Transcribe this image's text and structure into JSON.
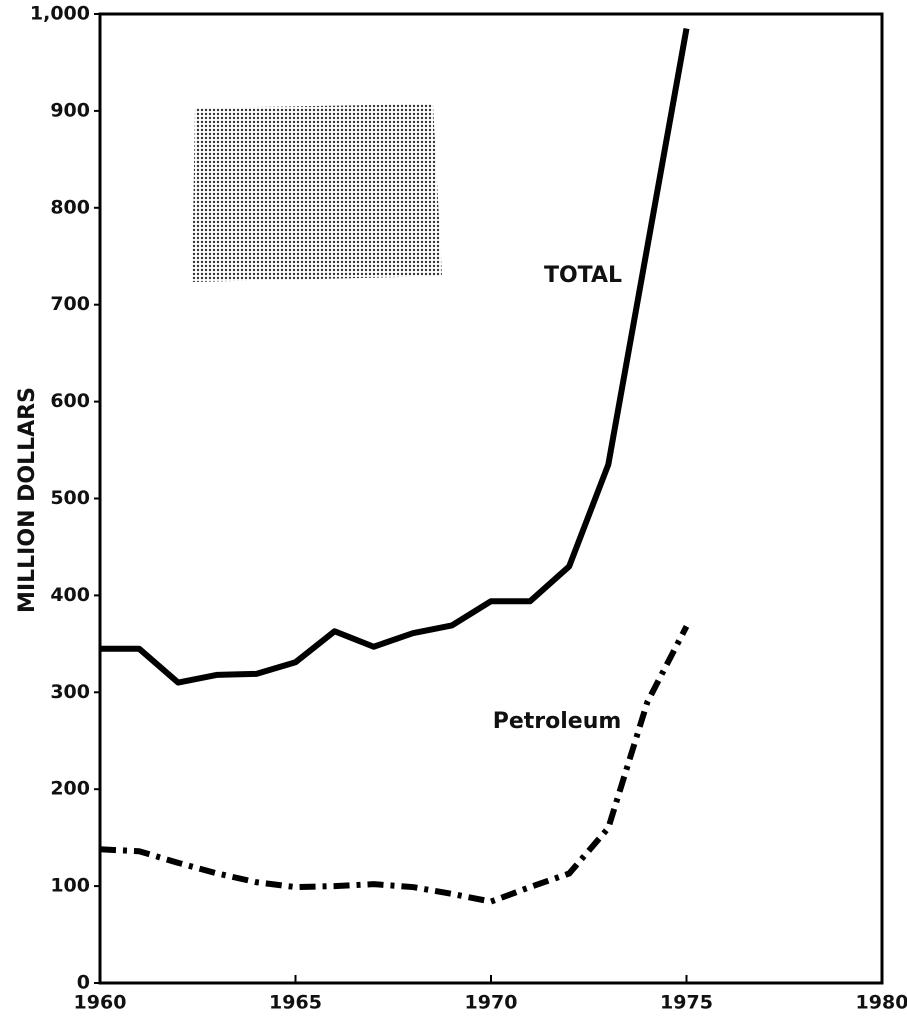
{
  "chart_data": {
    "type": "line",
    "ylabel": "MILLION DOLLARS",
    "x": [
      1960,
      1961,
      1962,
      1963,
      1964,
      1965,
      1966,
      1967,
      1968,
      1969,
      1970,
      1971,
      1972,
      1973,
      1974,
      1975
    ],
    "series": [
      {
        "name": "TOTAL",
        "color": "#000000",
        "dash": "solid",
        "values": [
          345,
          345,
          310,
          318,
          319,
          331,
          363,
          347,
          361,
          369,
          394,
          394,
          430,
          535,
          760,
          985
        ]
      },
      {
        "name": "Petroleum",
        "color": "#000000",
        "dash": "dash-dot",
        "values": [
          138,
          136,
          124,
          113,
          104,
          99,
          100,
          102,
          99,
          92,
          84,
          99,
          113,
          160,
          290,
          368
        ]
      }
    ],
    "xlim": [
      1960,
      1980
    ],
    "xticks": [
      1960,
      1965,
      1970,
      1975,
      1980
    ],
    "ylim": [
      0,
      1000
    ],
    "yticks": [
      0,
      100,
      200,
      300,
      400,
      500,
      600,
      700,
      800,
      900,
      {
        "value": 1000,
        "label": "1,000"
      }
    ],
    "grid": false
  }
}
